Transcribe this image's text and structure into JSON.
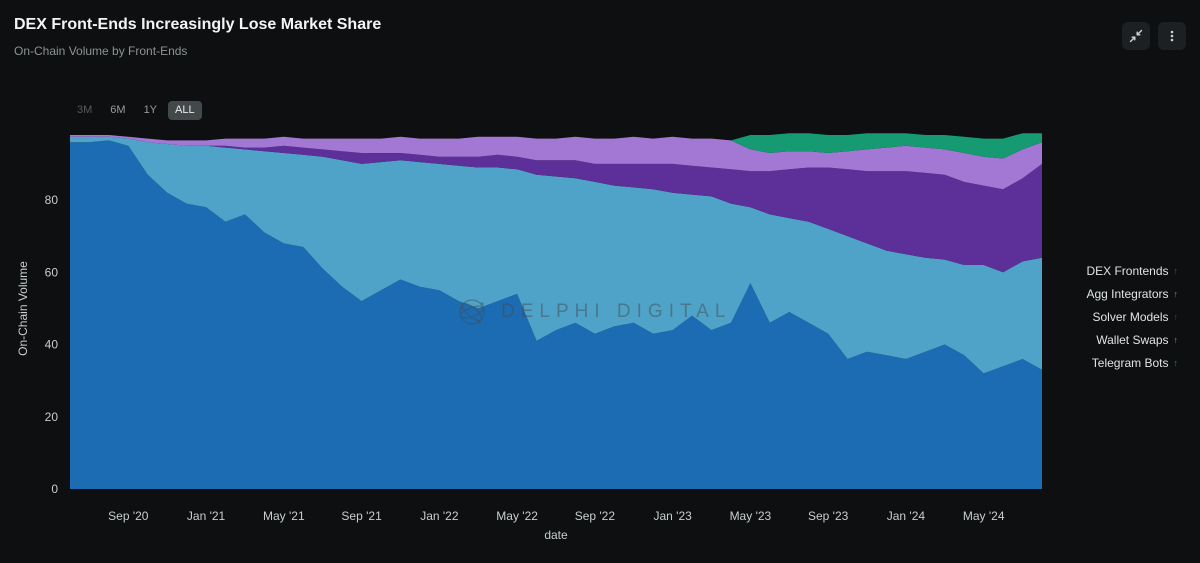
{
  "header": {
    "title": "DEX Front-Ends Increasingly Lose Market Share",
    "subtitle": "On-Chain Volume by Front-Ends"
  },
  "range_selector": {
    "options": [
      {
        "label": "3M",
        "active": false
      },
      {
        "label": "6M",
        "active": false
      },
      {
        "label": "1Y",
        "active": false
      },
      {
        "label": "ALL",
        "active": true
      }
    ]
  },
  "watermark": {
    "text": "DELPHI DIGITAL"
  },
  "legend": {
    "items": [
      {
        "label": "DEX Frontends",
        "color": "#1b6cb3",
        "arrow": "↑"
      },
      {
        "label": "Agg Integrators",
        "color": "#4fa3c9",
        "arrow": "↑"
      },
      {
        "label": "Solver Models",
        "color": "#5d3099",
        "arrow": "↑"
      },
      {
        "label": "Wallet Swaps",
        "color": "#a278d4",
        "arrow": "↑"
      },
      {
        "label": "Telegram Bots",
        "color": "#159a72",
        "arrow": "↑"
      }
    ]
  },
  "chart_data": {
    "type": "area",
    "stacked": true,
    "title": "DEX Front-Ends Increasingly Lose Market Share",
    "xlabel": "date",
    "ylabel": "On-Chain Volume",
    "ylim": [
      0,
      100
    ],
    "y_ticks": [
      0,
      20,
      40,
      60,
      80
    ],
    "grid": false,
    "legend_position": "right",
    "x": [
      "2020-06",
      "2020-07",
      "2020-08",
      "2020-09",
      "2020-10",
      "2020-11",
      "2020-12",
      "2021-01",
      "2021-02",
      "2021-03",
      "2021-04",
      "2021-05",
      "2021-06",
      "2021-07",
      "2021-08",
      "2021-09",
      "2021-10",
      "2021-11",
      "2021-12",
      "2022-01",
      "2022-02",
      "2022-03",
      "2022-04",
      "2022-05",
      "2022-06",
      "2022-07",
      "2022-08",
      "2022-09",
      "2022-10",
      "2022-11",
      "2022-12",
      "2023-01",
      "2023-02",
      "2023-03",
      "2023-04",
      "2023-05",
      "2023-06",
      "2023-07",
      "2023-08",
      "2023-09",
      "2023-10",
      "2023-11",
      "2023-12",
      "2024-01",
      "2024-02",
      "2024-03",
      "2024-04",
      "2024-05",
      "2024-06",
      "2024-07",
      "2024-08"
    ],
    "x_tick_indices": [
      3,
      7,
      11,
      15,
      19,
      23,
      27,
      31,
      35,
      39,
      43,
      47
    ],
    "x_tick_labels": [
      "Sep '20",
      "Jan '21",
      "May '21",
      "Sep '21",
      "Jan '22",
      "May '22",
      "Sep '22",
      "Jan '23",
      "May '23",
      "Sep '23",
      "Jan '24",
      "May '24"
    ],
    "series": [
      {
        "name": "DEX Frontends",
        "color": "#1b6cb3",
        "values": [
          96,
          96,
          96.5,
          95,
          87,
          82,
          79,
          78,
          74,
          76,
          71,
          68,
          67,
          61,
          56,
          52,
          55,
          58,
          56,
          55,
          52,
          50,
          52,
          54,
          41,
          44,
          46,
          43,
          45,
          46,
          43,
          44,
          48,
          44,
          46,
          57,
          46,
          49,
          46,
          43,
          36,
          38,
          37,
          36,
          38,
          40,
          37,
          32,
          34,
          36,
          33
        ]
      },
      {
        "name": "Agg Integrators",
        "color": "#4fa3c9",
        "values": [
          1.5,
          1.5,
          1,
          2,
          9,
          13.5,
          16,
          17,
          20.5,
          18,
          22.5,
          25,
          25.5,
          31,
          35,
          38,
          35.5,
          33,
          34.5,
          35,
          37.5,
          39,
          37,
          34.5,
          46,
          42.5,
          40,
          42,
          39,
          37.5,
          40,
          38,
          33.5,
          37,
          33,
          21,
          30,
          26,
          28,
          29,
          34,
          30,
          29,
          29,
          26,
          23.5,
          25,
          30,
          26,
          27,
          31
        ]
      },
      {
        "name": "Solver Models",
        "color": "#5d3099",
        "values": [
          0,
          0,
          0,
          0,
          0,
          0,
          0,
          0,
          0.5,
          0.5,
          1,
          2,
          2,
          2,
          2.5,
          3,
          2.5,
          2,
          2,
          2,
          2.5,
          3,
          3.5,
          3.5,
          4,
          4.5,
          5,
          5,
          6,
          6.5,
          7,
          8,
          8,
          8,
          9.5,
          10,
          12,
          13.5,
          15,
          17,
          18.5,
          20,
          22,
          23,
          23.5,
          23.5,
          23,
          22,
          23,
          23,
          26
        ]
      },
      {
        "name": "Wallet Swaps",
        "color": "#a278d4",
        "values": [
          0.5,
          0.5,
          0.5,
          0.5,
          1,
          1,
          1.5,
          1.5,
          2,
          2.5,
          2.5,
          2.5,
          2.5,
          3,
          3.5,
          4,
          4,
          4.5,
          4.5,
          5,
          5,
          5.5,
          5,
          5.5,
          6,
          6,
          6.5,
          7,
          7,
          7.5,
          7,
          7.5,
          7.5,
          8,
          8,
          6,
          5,
          5,
          4.5,
          4,
          5,
          6,
          6.5,
          7,
          7,
          7,
          8,
          8,
          8.5,
          8,
          6
        ]
      },
      {
        "name": "Telegram Bots",
        "color": "#159a72",
        "values": [
          0,
          0,
          0,
          0,
          0,
          0,
          0,
          0,
          0,
          0,
          0,
          0,
          0,
          0,
          0,
          0,
          0,
          0,
          0,
          0,
          0,
          0,
          0,
          0,
          0,
          0,
          0,
          0,
          0,
          0,
          0,
          0,
          0,
          0,
          0,
          4,
          5,
          5,
          5,
          5,
          4.5,
          4.5,
          4,
          3.5,
          3.5,
          4,
          4.5,
          5,
          5.5,
          4.5,
          2.5
        ]
      }
    ]
  }
}
